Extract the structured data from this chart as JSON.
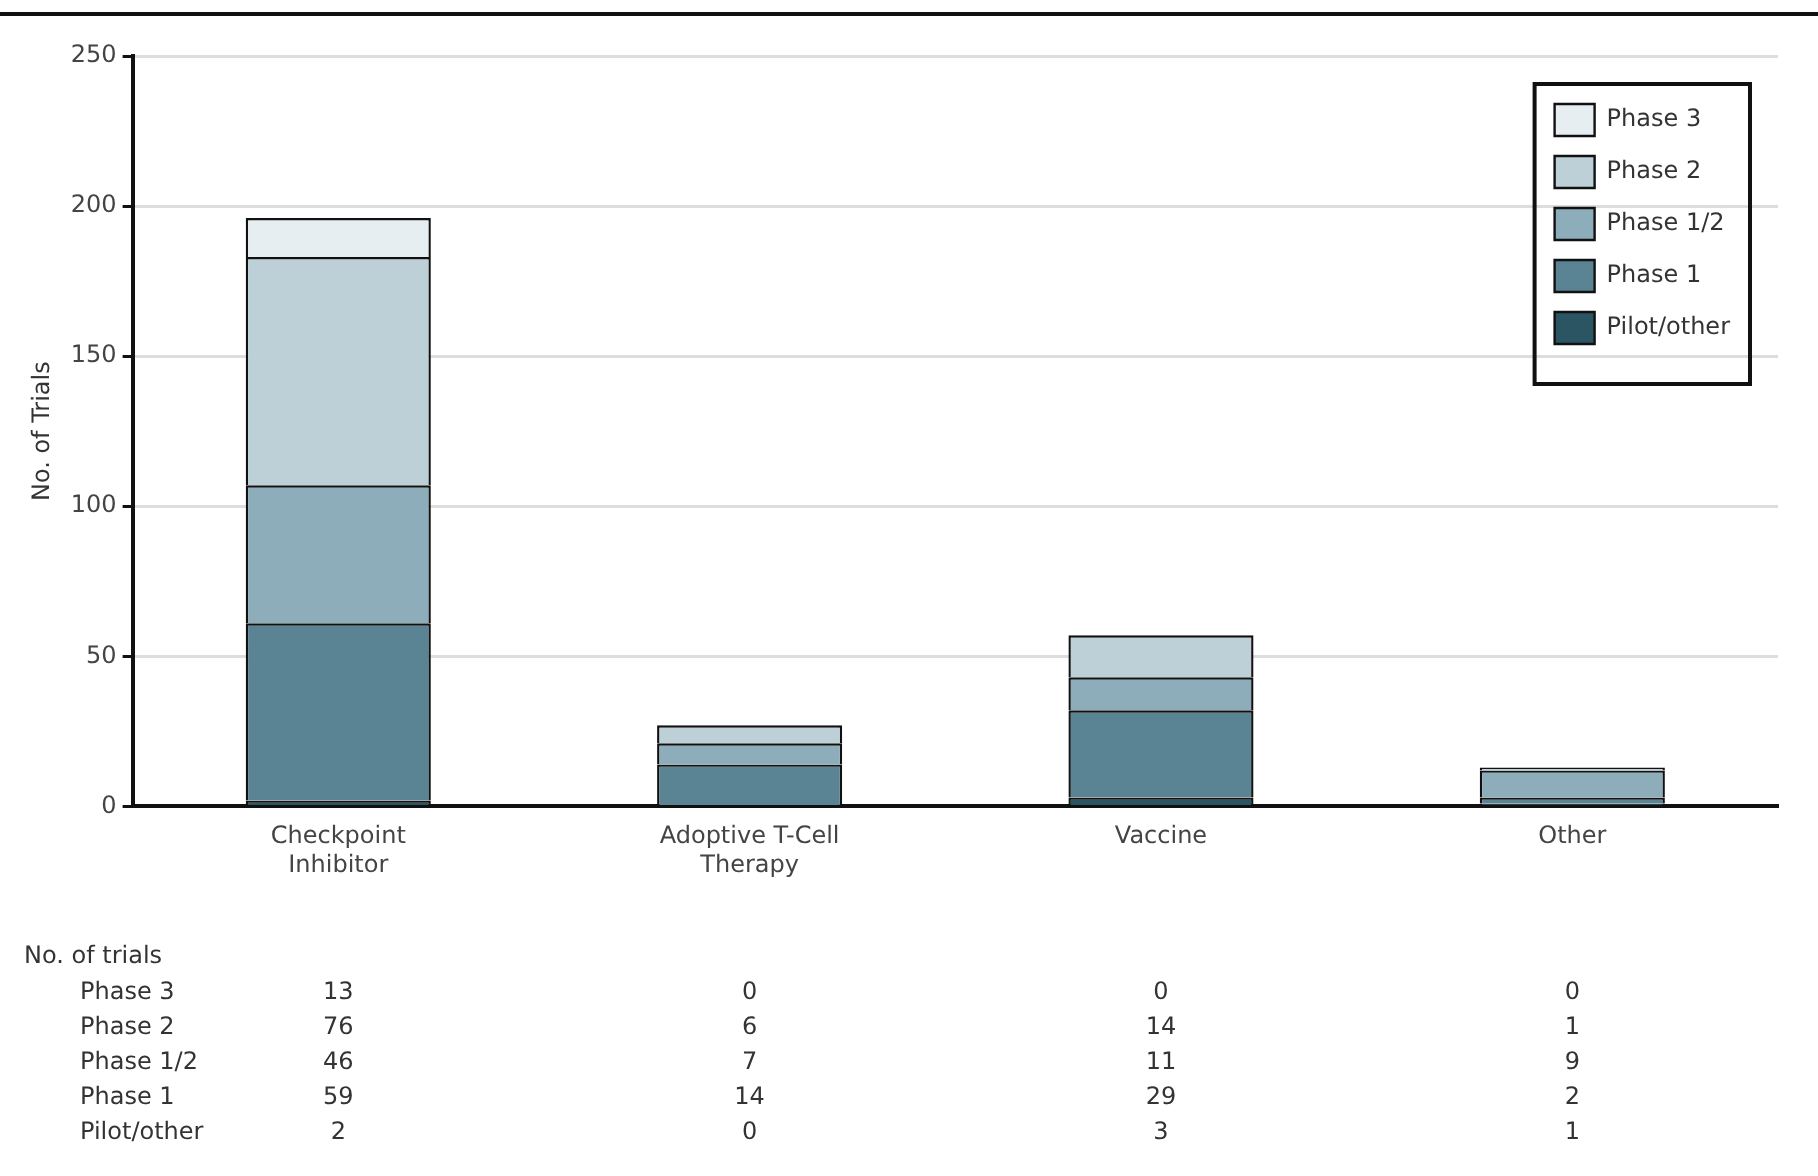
{
  "chart_data": {
    "type": "bar",
    "stacked": true,
    "ylabel": "No. of Trials",
    "categories": [
      "Checkpoint\nInhibitor",
      "Adoptive T-Cell\nTherapy",
      "Vaccine",
      "Other"
    ],
    "series": [
      {
        "name": "Pilot/other",
        "color": "#2c5563",
        "values": [
          2,
          0,
          3,
          1
        ]
      },
      {
        "name": "Phase 1",
        "color": "#5a8394",
        "values": [
          59,
          14,
          29,
          2
        ]
      },
      {
        "name": "Phase 1/2",
        "color": "#8eadbb",
        "values": [
          46,
          7,
          11,
          9
        ]
      },
      {
        "name": "Phase 2",
        "color": "#bdd0d8",
        "values": [
          76,
          6,
          14,
          1
        ]
      },
      {
        "name": "Phase 3",
        "color": "#e6eef2",
        "values": [
          13,
          0,
          0,
          0
        ]
      }
    ],
    "ylim": [
      0,
      250
    ],
    "yticks": [
      0,
      50,
      100,
      150,
      200,
      250
    ],
    "grid": "y",
    "legend": "top right",
    "data_labels": true,
    "annotations": [
      "No. of trials"
    ]
  }
}
